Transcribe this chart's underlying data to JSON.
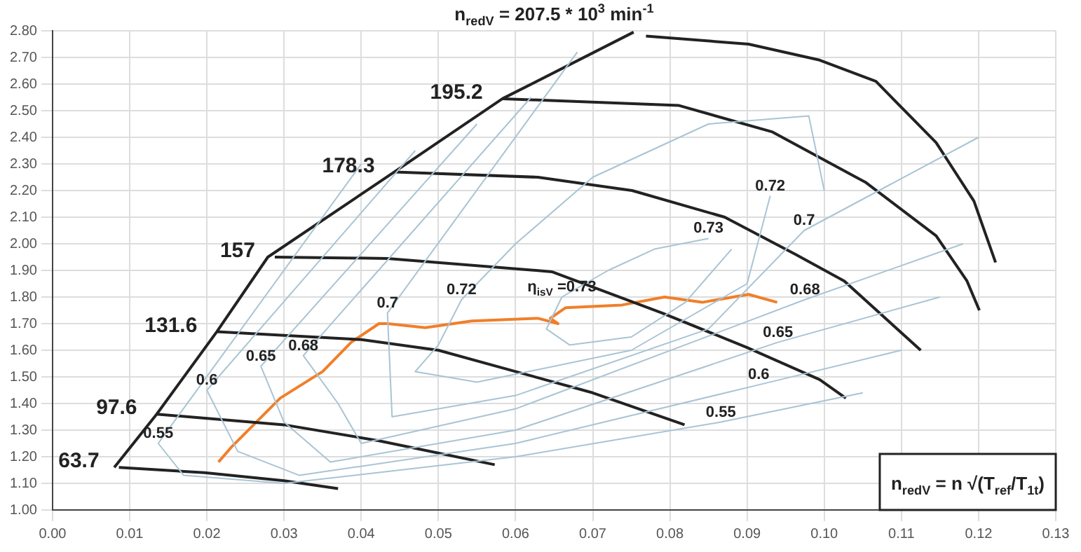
{
  "chart_data": {
    "type": "line",
    "title": "n$_{redV}$ = 207.5 * 10$^{3}$ min$^{-1}$",
    "xlim": [
      0,
      0.13
    ],
    "xticks": [
      {
        "value": 0,
        "label": "0.00"
      },
      {
        "value": 0.01,
        "label": "0.01"
      },
      {
        "value": 0.02,
        "label": "0.02"
      },
      {
        "value": 0.03,
        "label": "0.03"
      },
      {
        "value": 0.04,
        "label": "0.04"
      },
      {
        "value": 0.05,
        "label": "0.05"
      },
      {
        "value": 0.06,
        "label": "0.06"
      },
      {
        "value": 0.07,
        "label": "0.07"
      },
      {
        "value": 0.08,
        "label": "0.08"
      },
      {
        "value": 0.09,
        "label": "0.09"
      },
      {
        "value": 0.1,
        "label": "0.10"
      },
      {
        "value": 0.11,
        "label": "0.11"
      },
      {
        "value": 0.12,
        "label": "0.12"
      },
      {
        "value": 0.13,
        "label": "0.13"
      }
    ],
    "ylim": [
      1,
      2.8
    ],
    "yticks": [
      {
        "value": 1,
        "label": "1.00"
      },
      {
        "value": 1.1,
        "label": "1.10"
      },
      {
        "value": 1.2,
        "label": "1.20"
      },
      {
        "value": 1.3,
        "label": "1.30"
      },
      {
        "value": 1.4,
        "label": "1.40"
      },
      {
        "value": 1.5,
        "label": "1.50"
      },
      {
        "value": 1.6,
        "label": "1.60"
      },
      {
        "value": 1.7,
        "label": "1.70"
      },
      {
        "value": 1.8,
        "label": "1.80"
      },
      {
        "value": 1.9,
        "label": "1.90"
      },
      {
        "value": 2,
        "label": "2.00"
      },
      {
        "value": 2.1,
        "label": "2.10"
      },
      {
        "value": 2.2,
        "label": "2.20"
      },
      {
        "value": 2.3,
        "label": "2.30"
      },
      {
        "value": 2.4,
        "label": "2.40"
      },
      {
        "value": 2.5,
        "label": "2.50"
      },
      {
        "value": 2.6,
        "label": "2.60"
      },
      {
        "value": 2.7,
        "label": "2.70"
      },
      {
        "value": 2.8,
        "label": "2.80"
      }
    ],
    "grid": true,
    "marker": "none",
    "series": [
      {
        "color": "#a9c4d4",
        "x": [
          0.04,
          0.0137,
          0.017,
          0.03,
          0.06,
          0.0866,
          0.105
        ],
        "values": [
          2.3,
          1.25,
          1.13,
          1.1,
          1.2,
          1.33,
          1.44
        ]
      },
      {
        "color": "#a9c4d4",
        "x": [
          0.047,
          0.02,
          0.024,
          0.032,
          0.06,
          0.0915,
          0.11
        ],
        "values": [
          2.35,
          1.45,
          1.22,
          1.13,
          1.25,
          1.47,
          1.6
        ]
      },
      {
        "color": "#a9c4d4",
        "x": [
          0.055,
          0.027,
          0.03,
          0.036,
          0.06,
          0.094,
          0.115
        ],
        "values": [
          2.45,
          1.54,
          1.33,
          1.18,
          1.3,
          1.63,
          1.8
        ]
      },
      {
        "color": "#a9c4d4",
        "x": [
          0.062,
          0.0325,
          0.037,
          0.04,
          0.06,
          0.0975,
          0.118
        ],
        "values": [
          2.55,
          1.58,
          1.4,
          1.25,
          1.38,
          1.79,
          2.0
        ]
      },
      {
        "color": "#a9c4d4",
        "x": [
          0.068,
          0.0434,
          0.044,
          0.06,
          0.085,
          0.0974,
          0.12
        ],
        "values": [
          2.72,
          1.74,
          1.35,
          1.43,
          1.68,
          2.05,
          2.4
        ]
      },
      {
        "color": "#a9c4d4",
        "x": [
          0.1,
          0.098,
          0.085,
          0.07,
          0.06,
          0.053,
          0.05,
          0.047,
          0.055,
          0.075,
          0.09,
          0.093
        ],
        "values": [
          2.2,
          2.48,
          2.45,
          2.25,
          2.0,
          1.79,
          1.62,
          1.52,
          1.48,
          1.6,
          1.85,
          2.18
        ]
      },
      {
        "color": "#a9c4d4",
        "x": [
          0.085,
          0.078,
          0.072,
          0.066,
          0.064,
          0.067,
          0.075,
          0.082,
          0.088
        ],
        "values": [
          2.02,
          1.98,
          1.9,
          1.8,
          1.68,
          1.62,
          1.65,
          1.78,
          1.98
        ]
      },
      {
        "color": "#222222",
        "x": [
          0.008,
          0.0135,
          0.0213,
          0.0279,
          0.0443,
          0.0583,
          0.0753
        ],
        "values": [
          1.16,
          1.36,
          1.67,
          1.95,
          2.27,
          2.545,
          2.795
        ]
      },
      {
        "name": "63.7",
        "color": "#222222",
        "x": [
          0.0086,
          0.0197,
          0.03,
          0.037
        ],
        "values": [
          1.16,
          1.14,
          1.11,
          1.08
        ]
      },
      {
        "name": "97.6",
        "color": "#222222",
        "x": [
          0.0135,
          0.03,
          0.0423,
          0.0573
        ],
        "values": [
          1.36,
          1.32,
          1.26,
          1.17
        ]
      },
      {
        "name": "131.6",
        "color": "#222222",
        "x": [
          0.0213,
          0.04,
          0.05,
          0.06,
          0.07,
          0.0819
        ],
        "values": [
          1.67,
          1.64,
          1.6,
          1.52,
          1.44,
          1.32
        ]
      },
      {
        "name": "157",
        "color": "#222222",
        "x": [
          0.0288,
          0.0434,
          0.0647,
          0.079,
          0.09,
          0.0994,
          0.1028
        ],
        "values": [
          1.95,
          1.945,
          1.895,
          1.74,
          1.61,
          1.49,
          1.42
        ]
      },
      {
        "name": "178.3",
        "color": "#222222",
        "x": [
          0.0443,
          0.0629,
          0.0751,
          0.0871,
          0.0963,
          0.1026,
          0.1125
        ],
        "values": [
          2.27,
          2.25,
          2.2,
          2.1,
          1.96,
          1.86,
          1.6
        ]
      },
      {
        "name": "195.2",
        "color": "#222222",
        "x": [
          0.0583,
          0.0629,
          0.0811,
          0.0933,
          0.1054,
          0.1145,
          0.1185,
          0.1201
        ],
        "values": [
          2.545,
          2.54,
          2.52,
          2.42,
          2.23,
          2.03,
          1.86,
          1.75
        ]
      },
      {
        "color": "#222222",
        "x": [
          0.0769,
          0.0902,
          0.0994,
          0.1067,
          0.1145,
          0.1194,
          0.1222
        ],
        "values": [
          2.78,
          2.75,
          2.69,
          2.61,
          2.38,
          2.16,
          1.93
        ]
      },
      {
        "color": "#f07f2a",
        "x": [
          0.0215,
          0.0233,
          0.0295,
          0.035,
          0.0387,
          0.0423,
          0.0434,
          0.0483,
          0.0543,
          0.0629,
          0.0655,
          0.0645,
          0.0665,
          0.0738,
          0.0793,
          0.0842,
          0.0902,
          0.0939
        ],
        "values": [
          1.18,
          1.24,
          1.42,
          1.52,
          1.63,
          1.7,
          1.7,
          1.685,
          1.71,
          1.72,
          1.7,
          1.72,
          1.76,
          1.77,
          1.8,
          1.78,
          1.81,
          1.78
        ]
      }
    ],
    "annotations": [
      {
        "text": "0.55",
        "x": 0.0137,
        "y": 1.25
      },
      {
        "text": "0.6",
        "x": 0.02,
        "y": 1.45
      },
      {
        "text": "0.65",
        "x": 0.027,
        "y": 1.54
      },
      {
        "text": "0.68",
        "x": 0.0325,
        "y": 1.58
      },
      {
        "text": "0.7",
        "x": 0.0434,
        "y": 1.74
      },
      {
        "text": "0.72",
        "x": 0.053,
        "y": 1.79
      },
      {
        "text": "η$_{isV}$ =0.73",
        "x": 0.066,
        "y": 1.8
      },
      {
        "text": "0.73",
        "x": 0.085,
        "y": 2.02
      },
      {
        "text": "0.72",
        "x": 0.093,
        "y": 2.18
      },
      {
        "text": "0.7",
        "x": 0.0974,
        "y": 2.05
      },
      {
        "text": "0.68",
        "x": 0.0975,
        "y": 1.79
      },
      {
        "text": "0.65",
        "x": 0.094,
        "y": 1.63
      },
      {
        "text": "0.6",
        "x": 0.0915,
        "y": 1.47
      },
      {
        "text": "0.55",
        "x": 0.0866,
        "y": 1.33
      },
      "n$_{redV}$ = n √(T$_{ref}$/T$_{1t}$)"
    ]
  }
}
